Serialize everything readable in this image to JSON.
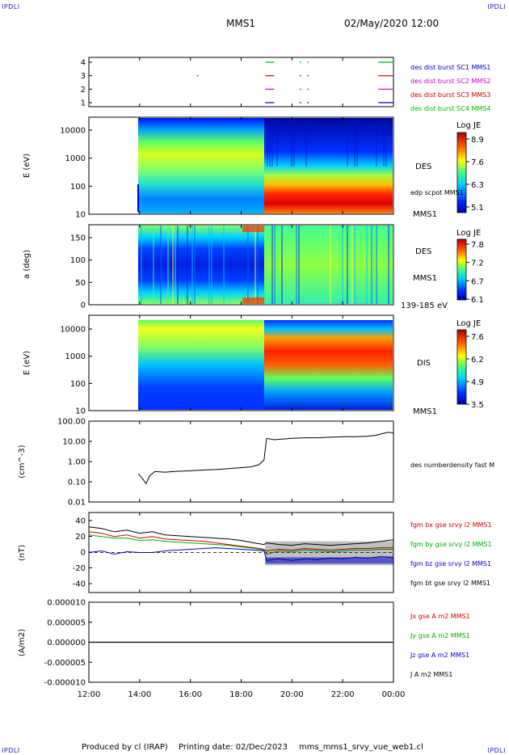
{
  "header": {
    "left_logo": "IPDLI",
    "right_logo": "IPDLI",
    "title": "MMS1",
    "date": "02/May/2020 12:00"
  },
  "footer": {
    "producer": "Produced by cl (IRAP)",
    "printing": "Printing date: 02/Dec/2023",
    "filename": "mms_mms1_srvy_vue_web1.cl",
    "left_logo": "IPDLI",
    "right_logo": "IPDLI"
  },
  "x_axis": {
    "ticks": [
      "12:00",
      "14:00",
      "16:00",
      "18:00",
      "20:00",
      "22:00",
      "00:00"
    ],
    "range_hours": [
      12,
      24
    ]
  },
  "panels": {
    "burst": {
      "yticks": [
        "4",
        "3",
        "2",
        "1"
      ],
      "legend": [
        {
          "text": "des dist burst SC1 MMS1",
          "color": "#0000cc"
        },
        {
          "text": "des dist burst SC2 MMS2",
          "color": "#cc00cc"
        },
        {
          "text": "des dist burst SC3 MMS3",
          "color": "#cc0000"
        },
        {
          "text": "des dist burst SC4 MMS4",
          "color": "#00bb00"
        }
      ],
      "colors": [
        "#0000cc",
        "#cc00cc",
        "#cc0000",
        "#00bb00"
      ]
    },
    "des_energy": {
      "ylabel": "E (eV)",
      "yticks": [
        "10000",
        "1000",
        "100",
        "10"
      ],
      "tag": "DES",
      "overlay": "edp scpot MMS1",
      "mission": "MMS1",
      "colorbar": {
        "title": "Log JE",
        "ticks": [
          "8.9",
          "7.6",
          "6.3",
          "5.1"
        ]
      }
    },
    "des_pitch": {
      "ylabel": "a (deg)",
      "yticks": [
        "150",
        "100",
        "50",
        "0"
      ],
      "tag": "DES",
      "mission": "MMS1",
      "energy_range": "139-185 eV",
      "colorbar": {
        "title": "Log JE",
        "ticks": [
          "7.8",
          "7.2",
          "6.7",
          "6.1"
        ]
      }
    },
    "dis_energy": {
      "ylabel": "E (eV)",
      "yticks": [
        "10000",
        "1000",
        "100",
        "10"
      ],
      "tag": "DIS",
      "mission": "MMS1",
      "colorbar": {
        "title": "Log JE",
        "ticks": [
          "7.6",
          "6.2",
          "4.9",
          "3.5"
        ]
      }
    },
    "density": {
      "ylabel": "(cm^-3)",
      "yticks": [
        "100.00",
        "10.00",
        "1.00",
        "0.10",
        "0.01"
      ],
      "legend": [
        {
          "text": "des numberdensity fast M",
          "color": "#000000"
        }
      ]
    },
    "bfield": {
      "ylabel": "(nT)",
      "yticks": [
        "40",
        "20",
        "0",
        "-20",
        "-40"
      ],
      "legend": [
        {
          "text": "fgm bx gse srvy l2 MMS1",
          "color": "#cc0000"
        },
        {
          "text": "fgm by gse srvy l2 MMS1",
          "color": "#00aa00"
        },
        {
          "text": "fgm bz gse srvy l2 MMS1",
          "color": "#0000cc"
        },
        {
          "text": "fgm bt gse srvy l2 MMS1",
          "color": "#000000"
        }
      ]
    },
    "current": {
      "ylabel": "(A/m2)",
      "yticks": [
        "0.000010",
        "0.000005",
        "0.000000",
        "-0.000005",
        "-0.000010"
      ],
      "legend": [
        {
          "text": "Jx gse A m2 MMS1",
          "color": "#cc0000"
        },
        {
          "text": "Jy gse A m2 MMS1",
          "color": "#00aa00"
        },
        {
          "text": "Jz gse A m2 MMS1",
          "color": "#0000cc"
        },
        {
          "text": "J A m2 MMS1",
          "color": "#000000"
        }
      ]
    }
  },
  "chart_data": [
    {
      "type": "line",
      "name": "burst intervals",
      "xlabel": "",
      "ylabel": "",
      "ylim": [
        0.5,
        4.5
      ],
      "series": [
        {
          "name": "des dist burst SC1 MMS1",
          "level": 1,
          "segments": [
            [
              18.95,
              19.3
            ],
            [
              20.3,
              20.35
            ],
            [
              20.6,
              20.65
            ],
            [
              23.4,
              24.0
            ]
          ]
        },
        {
          "name": "des dist burst SC2 MMS2",
          "level": 2,
          "segments": [
            [
              18.95,
              19.3
            ],
            [
              20.3,
              20.35
            ],
            [
              20.6,
              20.65
            ],
            [
              23.4,
              24.0
            ]
          ]
        },
        {
          "name": "des dist burst SC3 MMS3",
          "level": 3,
          "segments": [
            [
              16.25,
              16.27
            ],
            [
              18.95,
              19.3
            ],
            [
              20.3,
              20.35
            ],
            [
              20.6,
              20.65
            ],
            [
              23.4,
              24.0
            ]
          ]
        },
        {
          "name": "des dist burst SC4 MMS4",
          "level": 4,
          "segments": [
            [
              18.95,
              19.3
            ],
            [
              20.3,
              20.35
            ],
            [
              20.6,
              20.65
            ],
            [
              23.4,
              24.0
            ]
          ]
        }
      ]
    },
    {
      "type": "heatmap",
      "name": "DES energy spectrogram",
      "ylabel": "E (eV)",
      "yscale": "log",
      "ylim": [
        10,
        30000
      ],
      "data_start": 13.9,
      "boundary_hour": 18.95,
      "zlim": [
        5.1,
        8.9
      ]
    },
    {
      "type": "heatmap",
      "name": "DES pitch angle",
      "ylabel": "a (deg)",
      "ylim": [
        0,
        180
      ],
      "data_start": 13.9,
      "boundary_hour": 18.95,
      "zlim": [
        6.1,
        7.8
      ]
    },
    {
      "type": "heatmap",
      "name": "DIS energy spectrogram",
      "ylabel": "E (eV)",
      "yscale": "log",
      "ylim": [
        10,
        30000
      ],
      "data_start": 13.9,
      "boundary_hour": 18.95,
      "zlim": [
        3.5,
        7.6
      ]
    },
    {
      "type": "line",
      "name": "electron density",
      "ylabel": "(cm^-3)",
      "yscale": "log",
      "ylim": [
        0.01,
        100
      ],
      "x": [
        13.95,
        14.1,
        14.25,
        14.4,
        14.6,
        15.0,
        15.5,
        16.0,
        16.5,
        17.0,
        17.5,
        18.0,
        18.4,
        18.7,
        18.9,
        19.0,
        19.3,
        19.6,
        20.0,
        20.5,
        21.0,
        21.5,
        22.0,
        22.5,
        23.0,
        23.3,
        23.6,
        23.8,
        24.0
      ],
      "series": [
        {
          "name": "des numberdensity fast M",
          "values": [
            0.25,
            0.15,
            0.08,
            0.2,
            0.32,
            0.3,
            0.33,
            0.35,
            0.38,
            0.4,
            0.45,
            0.5,
            0.55,
            0.7,
            1.2,
            14,
            12,
            13,
            14,
            15,
            15,
            16,
            17,
            17,
            18,
            20,
            25,
            28,
            26
          ]
        }
      ]
    },
    {
      "type": "line",
      "name": "magnetic field",
      "ylabel": "(nT)",
      "ylim": [
        -50,
        50
      ],
      "x": [
        12.0,
        12.5,
        13.0,
        13.5,
        14.0,
        14.5,
        15.0,
        15.5,
        16.0,
        16.5,
        17.0,
        17.5,
        18.0,
        18.5,
        18.9,
        19.0,
        19.5,
        20.0,
        20.5,
        21.0,
        21.5,
        22.0,
        22.5,
        23.0,
        23.5,
        24.0
      ],
      "series": [
        {
          "name": "fgm bx gse srvy l2 MMS1",
          "values": [
            26,
            24,
            20,
            22,
            18,
            20,
            17,
            16,
            15,
            14,
            12,
            10,
            8,
            6,
            4,
            2,
            4,
            3,
            5,
            4,
            3,
            4,
            5,
            5,
            6,
            6
          ]
        },
        {
          "name": "fgm by gse srvy l2 MMS1",
          "values": [
            22,
            20,
            18,
            18,
            15,
            16,
            14,
            13,
            12,
            11,
            10,
            9,
            7,
            5,
            3,
            -2,
            2,
            1,
            3,
            2,
            1,
            2,
            3,
            3,
            4,
            4
          ]
        },
        {
          "name": "fgm bz gse srvy l2 MMS1",
          "values": [
            0,
            2,
            -2,
            1,
            0,
            0,
            2,
            3,
            4,
            5,
            6,
            5,
            4,
            3,
            2,
            -10,
            -8,
            -10,
            -8,
            -9,
            -7,
            -8,
            -6,
            -7,
            -5,
            -6
          ]
        },
        {
          "name": "fgm bt gse srvy l2 MMS1",
          "values": [
            32,
            30,
            26,
            28,
            24,
            26,
            22,
            21,
            20,
            19,
            18,
            17,
            15,
            12,
            10,
            12,
            10,
            9,
            11,
            10,
            9,
            10,
            11,
            12,
            14,
            16
          ]
        }
      ]
    },
    {
      "type": "line",
      "name": "current density",
      "ylabel": "(A/m2)",
      "ylim": [
        -1e-05,
        1e-05
      ],
      "x": [
        12.0,
        24.0
      ],
      "series": [
        {
          "name": "J A m2 MMS1",
          "values": [
            0.0,
            0.0
          ]
        }
      ]
    }
  ]
}
